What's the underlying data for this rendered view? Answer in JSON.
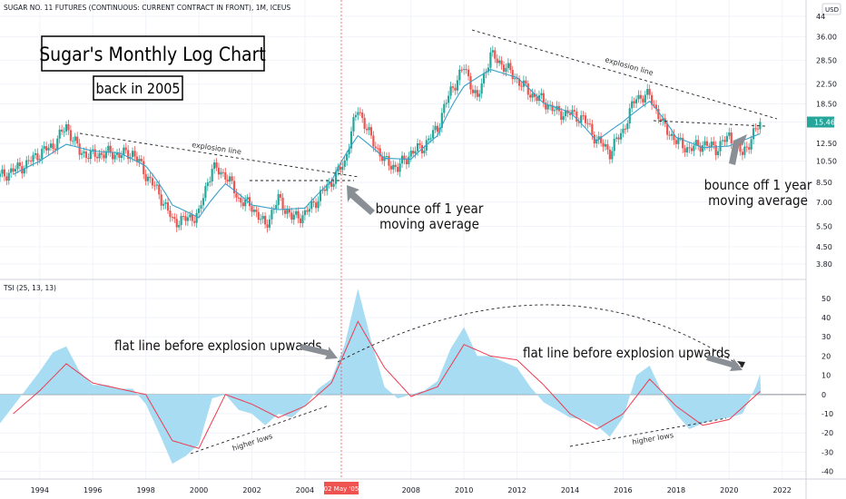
{
  "header": {
    "symbol_line": "SUGAR NO. 11 FUTURES (CONTINUOUS: CURRENT CONTRACT IN FRONT), 1M, ICEUS",
    "currency": "USD",
    "tsi_label": "TSI (25, 13, 13)"
  },
  "annotations": {
    "title": "Sugar's Monthly Log Chart",
    "subtitle": "back in 2005",
    "bounce_left_1": "bounce off 1 year",
    "bounce_left_2": "moving average",
    "bounce_right_1": "bounce off 1 year",
    "bounce_right_2": "moving average",
    "explosion_left": "explosion line",
    "explosion_right": "explosion line",
    "flat_left": "flat line before explosion upwards",
    "flat_right": "flat line before explosion upwards",
    "higher_lows_left": "higher lows",
    "higher_lows_right": "higher lows",
    "cursor_date": "02 May '05",
    "last_price": "15.46"
  },
  "colors": {
    "up": "#26a69a",
    "down": "#ef5350",
    "ma": "#3aa0c8",
    "tsi_fill": "#a7dcf2",
    "tsi_line": "#ef3b4f",
    "price_tag": "#26a69a",
    "cursor": "#ef5350"
  },
  "chart_data": [
    {
      "type": "candlestick",
      "title": "SUGAR NO. 11 FUTURES (CONTINUOUS: CURRENT CONTRACT IN FRONT), 1M, ICEUS",
      "y_scale": "log",
      "y_ticks": [
        3.8,
        4.5,
        5.5,
        7.0,
        8.5,
        10.5,
        12.5,
        15.46,
        18.5,
        22.5,
        28.5,
        36.0,
        44
      ],
      "y_tick_labels": [
        "3.80",
        "4.50",
        "5.50",
        "7.00",
        "8.50",
        "10.50",
        "12.50",
        "15.46",
        "18.50",
        "22.50",
        "28.50",
        "36.00",
        "44"
      ],
      "x_ticks": [
        1994,
        1996,
        1998,
        2000,
        2002,
        2004,
        2008,
        2010,
        2012,
        2014,
        2016,
        2018,
        2020,
        2022
      ],
      "x_range": [
        1992.5,
        2022.9
      ],
      "ylim": [
        3.5,
        44
      ],
      "series": [
        {
          "name": "price",
          "x": [
            1992.5,
            1993,
            1993.5,
            1994,
            1994.5,
            1995,
            1995.5,
            1996,
            1996.5,
            1997,
            1997.5,
            1998,
            1998.5,
            1999,
            1999.5,
            2000,
            2000.5,
            2001,
            2001.5,
            2002,
            2002.5,
            2003,
            2003.5,
            2004,
            2004.5,
            2005,
            2005.5,
            2006,
            2006.5,
            2007,
            2007.5,
            2008,
            2008.5,
            2009,
            2009.5,
            2010,
            2010.5,
            2011,
            2011.5,
            2012,
            2012.5,
            2013,
            2013.5,
            2014,
            2014.5,
            2015,
            2015.5,
            2016,
            2016.5,
            2017,
            2017.5,
            2018,
            2018.5,
            2019,
            2019.5,
            2020,
            2020.5,
            2021,
            2021.2
          ],
          "values": [
            9.0,
            9.6,
            10.2,
            11.4,
            12.2,
            14.8,
            11.5,
            11.1,
            11.4,
            11.2,
            11.4,
            9.2,
            7.6,
            5.8,
            5.9,
            6.2,
            9.8,
            9.2,
            7.2,
            6.7,
            5.5,
            7.2,
            6.0,
            6.2,
            7.3,
            8.6,
            10.3,
            17.6,
            13.0,
            10.5,
            9.8,
            11.4,
            12.2,
            14.6,
            21.0,
            26.5,
            19.0,
            30.0,
            27.0,
            23.5,
            20.5,
            19.0,
            17.0,
            16.8,
            16.0,
            13.0,
            11.5,
            14.2,
            19.8,
            20.0,
            15.0,
            12.8,
            11.8,
            12.5,
            11.9,
            13.4,
            11.2,
            14.2,
            15.46
          ]
        },
        {
          "name": "ma",
          "x": [
            1993,
            1994,
            1995,
            1996,
            1997,
            1998,
            1999,
            2000,
            2001,
            2002,
            2003,
            2004,
            2005,
            2006,
            2007,
            2008,
            2009,
            2010,
            2011,
            2012,
            2013,
            2014,
            2015,
            2016,
            2017,
            2018,
            2019,
            2020,
            2021.2
          ],
          "values": [
            9.2,
            10.5,
            12.4,
            11.6,
            11.4,
            10.0,
            6.8,
            6.0,
            8.4,
            6.8,
            6.5,
            6.6,
            8.6,
            13.5,
            10.8,
            10.7,
            13.5,
            22.0,
            26.0,
            24.0,
            18.6,
            17.0,
            12.8,
            15.5,
            19.0,
            13.3,
            12.0,
            12.2,
            13.8
          ]
        }
      ]
    },
    {
      "type": "area",
      "title": "TSI (25, 13, 13)",
      "y_ticks": [
        -40,
        -30,
        -20,
        -10,
        0,
        10,
        20,
        30,
        40,
        50
      ],
      "y_tick_labels": [
        "-40",
        "-30",
        "-20",
        "-10",
        "0",
        "10",
        "20",
        "30",
        "40",
        "50"
      ],
      "ylim": [
        -43,
        57
      ],
      "series": [
        {
          "name": "TSI",
          "x": [
            1992.5,
            1993,
            1993.5,
            1994,
            1994.5,
            1995,
            1995.5,
            1996,
            1996.5,
            1997,
            1997.5,
            1998,
            1998.5,
            1999,
            1999.5,
            2000,
            2000.5,
            2001,
            2001.5,
            2002,
            2002.5,
            2003,
            2003.5,
            2004,
            2004.5,
            2005,
            2005.5,
            2006,
            2006.5,
            2007,
            2007.5,
            2008,
            2008.5,
            2009,
            2009.5,
            2010,
            2010.5,
            2011,
            2011.5,
            2012,
            2012.5,
            2013,
            2013.5,
            2014,
            2014.5,
            2015,
            2015.5,
            2016,
            2016.5,
            2017,
            2017.5,
            2018,
            2018.5,
            2019,
            2019.5,
            2020,
            2020.5,
            2021,
            2021.2
          ],
          "values": [
            -15,
            -6,
            3,
            12,
            22,
            25,
            12,
            5,
            5,
            3,
            3,
            -5,
            -20,
            -36,
            -32,
            -26,
            -2,
            0,
            -8,
            -10,
            -16,
            -10,
            -12,
            -6,
            3,
            8,
            26,
            55,
            28,
            4,
            -2,
            0,
            2,
            7,
            24,
            35,
            20,
            20,
            17,
            14,
            4,
            -4,
            -8,
            -12,
            -13,
            -16,
            -22,
            -12,
            10,
            15,
            0,
            -10,
            -18,
            -15,
            -13,
            -12,
            -10,
            4,
            12
          ]
        },
        {
          "name": "signal",
          "x": [
            1993,
            1994,
            1995,
            1996,
            1997,
            1998,
            1999,
            2000,
            2001,
            2002,
            2003,
            2004,
            2005,
            2006,
            2007,
            2008,
            2009,
            2010,
            2011,
            2012,
            2013,
            2014,
            2015,
            2016,
            2017,
            2018,
            2019,
            2020,
            2021.2
          ],
          "values": [
            -10,
            2,
            16,
            6,
            3,
            0,
            -24,
            -28,
            0,
            -5,
            -12,
            -6,
            6,
            38,
            14,
            -1,
            4,
            26,
            20,
            18,
            5,
            -10,
            -18,
            -10,
            8,
            -6,
            -16,
            -13,
            2
          ]
        }
      ]
    }
  ]
}
